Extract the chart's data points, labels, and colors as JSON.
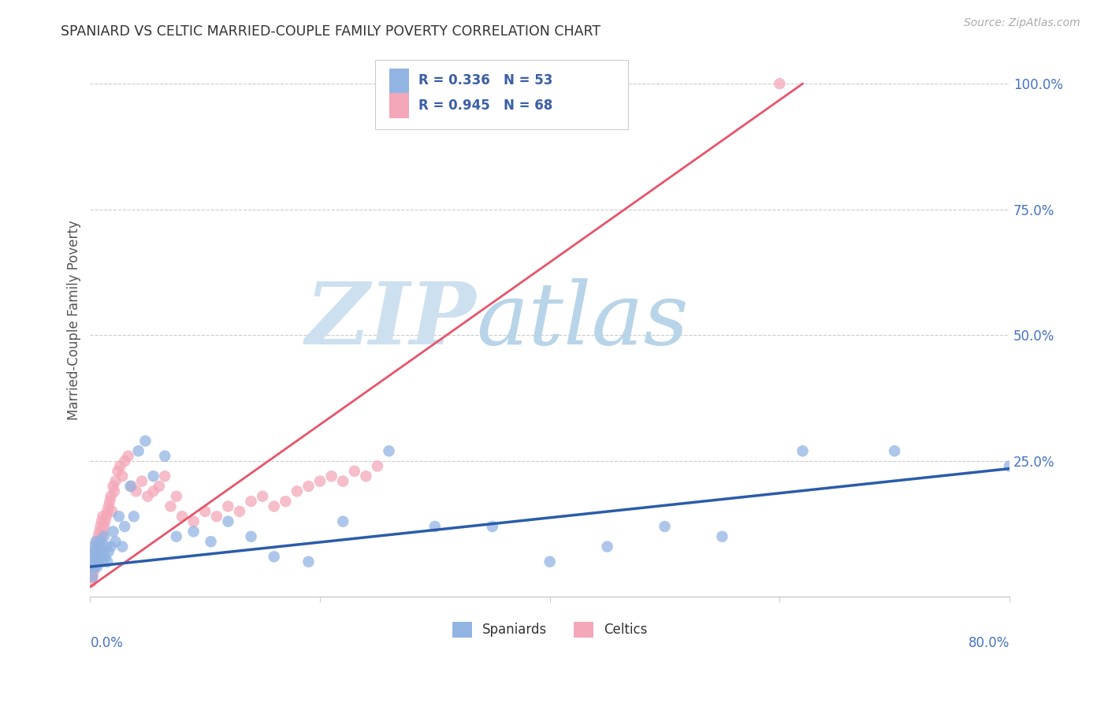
{
  "title": "SPANIARD VS CELTIC MARRIED-COUPLE FAMILY POVERTY CORRELATION CHART",
  "source": "Source: ZipAtlas.com",
  "ylabel": "Married-Couple Family Poverty",
  "ytick_labels": [
    "100.0%",
    "75.0%",
    "50.0%",
    "25.0%"
  ],
  "ytick_values": [
    1.0,
    0.75,
    0.5,
    0.25
  ],
  "xlim": [
    0.0,
    0.8
  ],
  "ylim": [
    -0.02,
    1.08
  ],
  "spaniards_R": 0.336,
  "spaniards_N": 53,
  "celtics_R": 0.945,
  "celtics_N": 68,
  "spaniards_color": "#92b4e3",
  "celtics_color": "#f4a7b9",
  "spaniards_line_color": "#2a5caa",
  "celtics_line_color": "#e8546a",
  "legend_label_spaniards": "Spaniards",
  "legend_label_celtics": "Celtics",
  "watermark_zip": "ZIP",
  "watermark_atlas": "atlas",
  "watermark_color_zip": "#cde0f0",
  "watermark_color_atlas": "#b8d4e8",
  "background_color": "#ffffff",
  "grid_color": "#cccccc",
  "title_color": "#333333",
  "axis_label_color": "#4472c4",
  "legend_text_color": "#3a5fa5",
  "spaniards_x": [
    0.001,
    0.002,
    0.002,
    0.003,
    0.003,
    0.004,
    0.004,
    0.005,
    0.005,
    0.006,
    0.006,
    0.007,
    0.007,
    0.008,
    0.008,
    0.009,
    0.01,
    0.011,
    0.012,
    0.013,
    0.014,
    0.015,
    0.016,
    0.018,
    0.02,
    0.022,
    0.025,
    0.028,
    0.03,
    0.035,
    0.038,
    0.042,
    0.048,
    0.055,
    0.065,
    0.075,
    0.09,
    0.105,
    0.12,
    0.14,
    0.16,
    0.19,
    0.22,
    0.26,
    0.3,
    0.35,
    0.4,
    0.45,
    0.5,
    0.55,
    0.62,
    0.7,
    0.8
  ],
  "spaniards_y": [
    0.04,
    0.02,
    0.06,
    0.05,
    0.08,
    0.04,
    0.07,
    0.05,
    0.09,
    0.04,
    0.06,
    0.07,
    0.05,
    0.08,
    0.06,
    0.09,
    0.07,
    0.05,
    0.1,
    0.06,
    0.08,
    0.05,
    0.07,
    0.08,
    0.11,
    0.09,
    0.14,
    0.08,
    0.12,
    0.2,
    0.14,
    0.27,
    0.29,
    0.22,
    0.26,
    0.1,
    0.11,
    0.09,
    0.13,
    0.1,
    0.06,
    0.05,
    0.13,
    0.27,
    0.12,
    0.12,
    0.05,
    0.08,
    0.12,
    0.1,
    0.27,
    0.27,
    0.24
  ],
  "celtics_x": [
    0.001,
    0.001,
    0.002,
    0.002,
    0.002,
    0.003,
    0.003,
    0.003,
    0.004,
    0.004,
    0.005,
    0.005,
    0.006,
    0.006,
    0.007,
    0.007,
    0.008,
    0.008,
    0.009,
    0.009,
    0.01,
    0.01,
    0.011,
    0.011,
    0.012,
    0.013,
    0.014,
    0.015,
    0.016,
    0.017,
    0.018,
    0.019,
    0.02,
    0.021,
    0.022,
    0.024,
    0.026,
    0.028,
    0.03,
    0.033,
    0.036,
    0.04,
    0.045,
    0.05,
    0.055,
    0.06,
    0.065,
    0.07,
    0.075,
    0.08,
    0.09,
    0.1,
    0.11,
    0.12,
    0.13,
    0.14,
    0.15,
    0.16,
    0.17,
    0.18,
    0.19,
    0.2,
    0.21,
    0.22,
    0.23,
    0.24,
    0.25,
    0.6
  ],
  "celtics_y": [
    0.01,
    0.02,
    0.02,
    0.03,
    0.04,
    0.03,
    0.05,
    0.06,
    0.04,
    0.07,
    0.05,
    0.08,
    0.06,
    0.09,
    0.07,
    0.1,
    0.08,
    0.11,
    0.09,
    0.12,
    0.1,
    0.13,
    0.11,
    0.14,
    0.12,
    0.13,
    0.14,
    0.15,
    0.16,
    0.17,
    0.18,
    0.15,
    0.2,
    0.19,
    0.21,
    0.23,
    0.24,
    0.22,
    0.25,
    0.26,
    0.2,
    0.19,
    0.21,
    0.18,
    0.19,
    0.2,
    0.22,
    0.16,
    0.18,
    0.14,
    0.13,
    0.15,
    0.14,
    0.16,
    0.15,
    0.17,
    0.18,
    0.16,
    0.17,
    0.19,
    0.2,
    0.21,
    0.22,
    0.21,
    0.23,
    0.22,
    0.24,
    1.0
  ],
  "celtics_line_x": [
    0.0,
    0.62
  ],
  "celtics_line_y": [
    0.0,
    1.0
  ],
  "spaniards_line_x": [
    0.0,
    0.8
  ],
  "spaniards_line_y": [
    0.04,
    0.235
  ]
}
